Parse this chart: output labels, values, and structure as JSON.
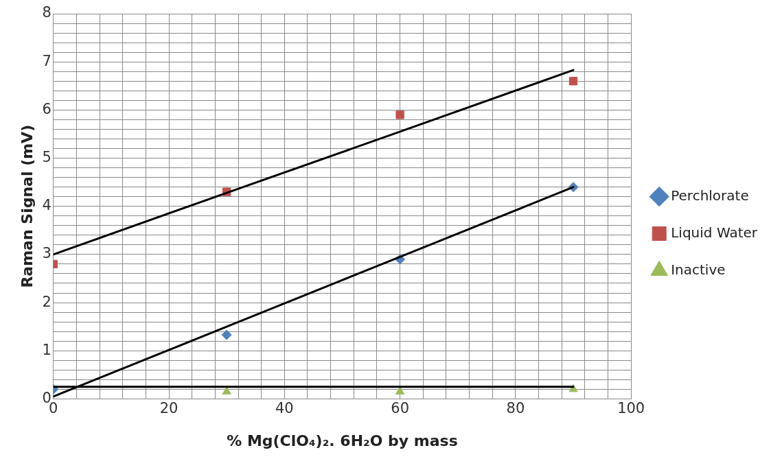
{
  "chart_data": {
    "type": "scatter",
    "xlabel": "% Mg(ClO₄)₂. 6H₂O by mass",
    "ylabel": "Raman Signal (mV)",
    "x": [
      0,
      30,
      60,
      90
    ],
    "series": [
      {
        "name": "Perchlorate",
        "type": "scatter",
        "marker": "diamond",
        "color": "#4f81bd",
        "values": [
          0.2,
          1.33,
          2.9,
          4.4
        ]
      },
      {
        "name": "Liquid Water",
        "type": "scatter",
        "marker": "square",
        "color": "#c0504d",
        "values": [
          2.8,
          4.3,
          5.9,
          6.6
        ]
      },
      {
        "name": "Inactive",
        "type": "scatter",
        "marker": "triangle",
        "color": "#9bbb59",
        "values": [
          null,
          0.15,
          0.15,
          0.2
        ]
      },
      {
        "type": "line",
        "color": "#000000",
        "values": [
          0.05,
          1.5,
          2.95,
          4.4
        ]
      },
      {
        "type": "line",
        "color": "#000000",
        "values": [
          3.0,
          4.28,
          5.55,
          6.83
        ]
      },
      {
        "type": "line",
        "color": "#000000",
        "values": [
          0.25,
          0.25,
          0.25,
          0.25
        ]
      }
    ],
    "xlim": [
      0,
      100
    ],
    "ylim": [
      0,
      8
    ],
    "xticks": [
      0,
      {
        "value": 4,
        "label": null
      },
      {
        "value": 8,
        "label": null
      },
      {
        "value": 12,
        "label": null
      },
      {
        "value": 16,
        "label": null
      },
      20,
      {
        "value": 24,
        "label": null
      },
      {
        "value": 28,
        "label": null
      },
      {
        "value": 32,
        "label": null
      },
      {
        "value": 36,
        "label": null
      },
      40,
      {
        "value": 44,
        "label": null
      },
      {
        "value": 48,
        "label": null
      },
      {
        "value": 52,
        "label": null
      },
      {
        "value": 56,
        "label": null
      },
      60,
      {
        "value": 64,
        "label": null
      },
      {
        "value": 68,
        "label": null
      },
      {
        "value": 72,
        "label": null
      },
      {
        "value": 76,
        "label": null
      },
      80,
      {
        "value": 84,
        "label": null
      },
      {
        "value": 88,
        "label": null
      },
      {
        "value": 92,
        "label": null
      },
      {
        "value": 96,
        "label": null
      },
      100
    ],
    "yticks": [
      0,
      {
        "value": 0.2,
        "label": null
      },
      {
        "value": 0.4,
        "label": null
      },
      {
        "value": 0.6,
        "label": null
      },
      {
        "value": 0.8,
        "label": null
      },
      1,
      {
        "value": 1.2,
        "label": null
      },
      {
        "value": 1.4,
        "label": null
      },
      {
        "value": 1.6,
        "label": null
      },
      {
        "value": 1.8,
        "label": null
      },
      2,
      {
        "value": 2.2,
        "label": null
      },
      {
        "value": 2.4,
        "label": null
      },
      {
        "value": 2.6,
        "label": null
      },
      {
        "value": 2.8,
        "label": null
      },
      3,
      {
        "value": 3.2,
        "label": null
      },
      {
        "value": 3.4,
        "label": null
      },
      {
        "value": 3.6,
        "label": null
      },
      {
        "value": 3.8,
        "label": null
      },
      4,
      {
        "value": 4.2,
        "label": null
      },
      {
        "value": 4.4,
        "label": null
      },
      {
        "value": 4.6,
        "label": null
      },
      {
        "value": 4.8,
        "label": null
      },
      5,
      {
        "value": 5.2,
        "label": null
      },
      {
        "value": 5.4,
        "label": null
      },
      {
        "value": 5.6,
        "label": null
      },
      {
        "value": 5.8,
        "label": null
      },
      6,
      {
        "value": 6.2,
        "label": null
      },
      {
        "value": 6.4,
        "label": null
      },
      {
        "value": 6.6,
        "label": null
      },
      {
        "value": 6.8,
        "label": null
      },
      7,
      {
        "value": 7.2,
        "label": null
      },
      {
        "value": 7.4,
        "label": null
      },
      {
        "value": 7.6,
        "label": null
      },
      {
        "value": 7.8,
        "label": null
      },
      8
    ],
    "grid": true,
    "legend": "right"
  }
}
